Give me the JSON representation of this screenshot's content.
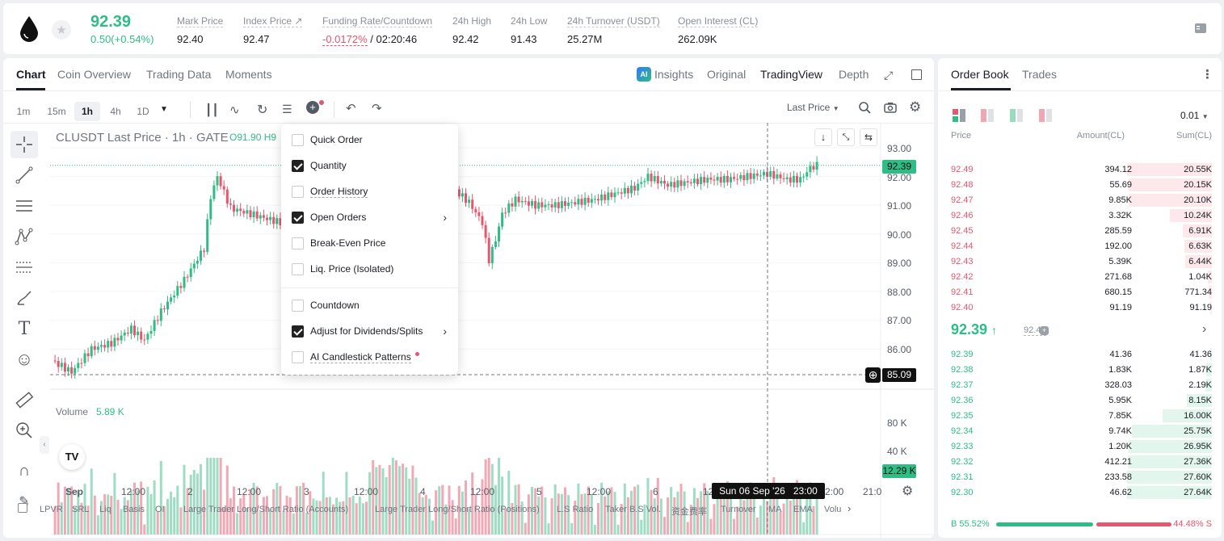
{
  "header": {
    "last_price": "92.39",
    "change": "0.50(+0.54%)",
    "stats": [
      {
        "label": "Mark Price",
        "value": "92.40"
      },
      {
        "label": "Index Price ↗",
        "value": "92.47"
      },
      {
        "label": "Funding Rate/Countdown",
        "value_neg": "-0.0172%",
        "value": " / 02:20:46"
      },
      {
        "label": "24h High",
        "value": "92.42"
      },
      {
        "label": "24h Low",
        "value": "91.43"
      },
      {
        "label": "24h Turnover (USDT)",
        "value": "25.27M"
      },
      {
        "label": "Open Interest (CL)",
        "value": "262.09K"
      }
    ]
  },
  "chart_tabs": [
    "Chart",
    "Coin Overview",
    "Trading Data",
    "Moments"
  ],
  "view_tabs": [
    "Insights",
    "Original",
    "TradingView",
    "Depth"
  ],
  "timeframes": [
    "1m",
    "15m",
    "1h",
    "4h",
    "1D"
  ],
  "price_type": "Last Price",
  "legend": {
    "symbol": "CLUSDT Last Price · 1h · GATE",
    "ohlc": "O91.90 H9"
  },
  "menu_items": [
    {
      "label": "Quick Order",
      "checked": false
    },
    {
      "label": "Quantity",
      "checked": true
    },
    {
      "label": "Order History",
      "checked": false
    },
    {
      "label": "Open Orders",
      "checked": true
    },
    {
      "label": "Break-Even Price",
      "checked": false
    },
    {
      "label": "Liq. Price (Isolated)",
      "checked": false
    },
    {
      "label": "Countdown",
      "checked": false
    },
    {
      "label": "Adjust for Dividends/Splits",
      "checked": true
    },
    {
      "label": "AI Candlestick Patterns",
      "checked": false
    }
  ],
  "price_axis": [
    "93.00",
    "92.00",
    "91.00",
    "90.00",
    "89.00",
    "88.00",
    "87.00",
    "86.00"
  ],
  "current_price_tag": "92.39",
  "crosshair_price": "85.09",
  "volume": {
    "label": "Volume",
    "value": "5.89 K",
    "axis": [
      "80 K",
      "40 K"
    ],
    "tag": "12.29 K"
  },
  "x_axis": [
    "Sep",
    "12:00",
    "2",
    "12:00",
    "3",
    "12:00",
    "4",
    "12:00",
    "5",
    "12:00",
    "6",
    "12",
    "2:00",
    "21:0"
  ],
  "crosshair_time": "Sun 06 Sep '26   23:00",
  "indicators": [
    "LPVR",
    "SRL",
    "Liq",
    "Basis",
    "OI",
    "Large Trader Long/Short Ratio (Accounts)",
    "Large Trader Long/Short Ratio (Positions)",
    "L.S Ratio",
    "Taker B.S Vol.",
    "资金费率",
    "Turnover",
    "MA",
    "EMA",
    "Volu"
  ],
  "orderbook": {
    "tabs": [
      "Order Book",
      "Trades"
    ],
    "precision": "0.01",
    "headers": [
      "Price",
      "Amount(CL)",
      "Sum(CL)"
    ],
    "asks": [
      {
        "price": "92.49",
        "amount": "394.12",
        "sum": "20.55K",
        "depth": 1.0
      },
      {
        "price": "92.48",
        "amount": "55.69",
        "sum": "20.15K",
        "depth": 0.98
      },
      {
        "price": "92.47",
        "amount": "9.85K",
        "sum": "20.10K",
        "depth": 0.98
      },
      {
        "price": "92.46",
        "amount": "3.32K",
        "sum": "10.24K",
        "depth": 0.5
      },
      {
        "price": "92.45",
        "amount": "285.59",
        "sum": "6.91K",
        "depth": 0.34
      },
      {
        "price": "92.44",
        "amount": "192.00",
        "sum": "6.63K",
        "depth": 0.32
      },
      {
        "price": "92.43",
        "amount": "5.39K",
        "sum": "6.44K",
        "depth": 0.31
      },
      {
        "price": "92.42",
        "amount": "271.68",
        "sum": "1.04K",
        "depth": 0.05
      },
      {
        "price": "92.41",
        "amount": "680.15",
        "sum": "771.34",
        "depth": 0.04
      },
      {
        "price": "92.40",
        "amount": "91.19",
        "sum": "91.19",
        "depth": 0.01
      }
    ],
    "mid_price": "92.39",
    "mark_price": "92.40",
    "bids": [
      {
        "price": "92.39",
        "amount": "41.36",
        "sum": "41.36",
        "depth": 0.01
      },
      {
        "price": "92.38",
        "amount": "1.83K",
        "sum": "1.87K",
        "depth": 0.07
      },
      {
        "price": "92.37",
        "amount": "328.03",
        "sum": "2.19K",
        "depth": 0.08
      },
      {
        "price": "92.36",
        "amount": "5.95K",
        "sum": "8.15K",
        "depth": 0.3
      },
      {
        "price": "92.35",
        "amount": "7.85K",
        "sum": "16.00K",
        "depth": 0.58
      },
      {
        "price": "92.34",
        "amount": "9.74K",
        "sum": "25.75K",
        "depth": 0.94
      },
      {
        "price": "92.33",
        "amount": "1.20K",
        "sum": "26.95K",
        "depth": 0.98
      },
      {
        "price": "92.32",
        "amount": "412.21",
        "sum": "27.36K",
        "depth": 0.99
      },
      {
        "price": "92.31",
        "amount": "233.58",
        "sum": "27.60K",
        "depth": 1.0
      },
      {
        "price": "92.30",
        "amount": "46.62",
        "sum": "27.64K",
        "depth": 1.0
      }
    ],
    "buy_ratio": "B 55.52%",
    "sell_ratio": "44.48% S",
    "buy_fraction": 0.5552
  },
  "colors": {
    "up": "#2ebd85",
    "down": "#e5566f"
  }
}
